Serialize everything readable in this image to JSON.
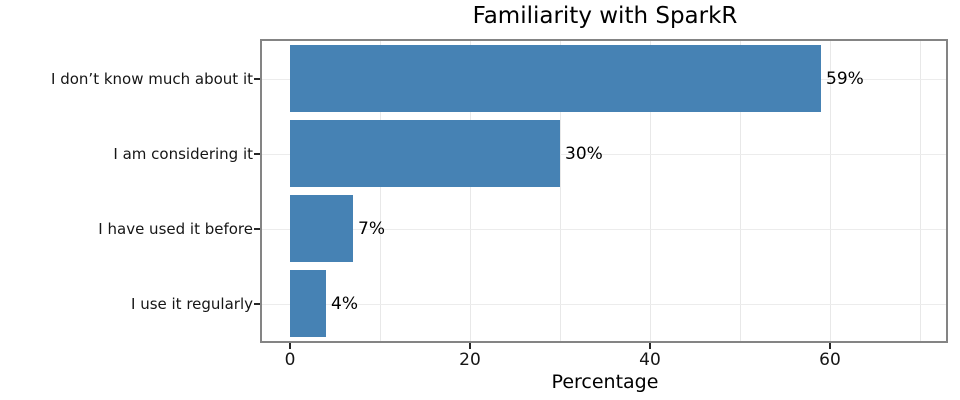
{
  "chart_data": {
    "type": "bar",
    "orientation": "horizontal",
    "title": "Familiarity with SparkR",
    "xlabel": "Percentage",
    "ylabel": "",
    "categories": [
      "I don’t know much about it",
      "I am considering it",
      "I have used it before",
      "I use it regularly"
    ],
    "values": [
      59,
      30,
      7,
      4
    ],
    "value_labels": [
      "59%",
      "30%",
      "7%",
      "4%"
    ],
    "xticks": [
      0,
      20,
      40,
      60
    ],
    "xtick_labels": [
      "0",
      "20",
      "40",
      "60"
    ],
    "xlim": [
      -3.1,
      73.1
    ],
    "grid": true,
    "grid_minor_step_x": 10,
    "legend": "none",
    "colors": {
      "bar": "#4682b4",
      "grid": "#e8e8e8",
      "spine": "#848484",
      "tick": "#262626",
      "text": "#000000"
    }
  }
}
